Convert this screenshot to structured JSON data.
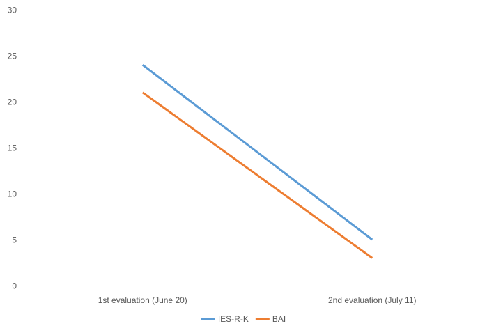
{
  "chart_data": {
    "type": "line",
    "categories": [
      "1st evaluation (June 20)",
      "2nd evaluation (July 11)"
    ],
    "series": [
      {
        "name": "IES-R-K",
        "values": [
          24,
          5
        ],
        "color": "#5b9bd5"
      },
      {
        "name": "BAI",
        "values": [
          21,
          3
        ],
        "color": "#ed7d31"
      }
    ],
    "ylim": [
      0,
      30
    ],
    "yticks": [
      0,
      5,
      10,
      15,
      20,
      25,
      30
    ],
    "grid": true,
    "legend_position": "bottom"
  }
}
